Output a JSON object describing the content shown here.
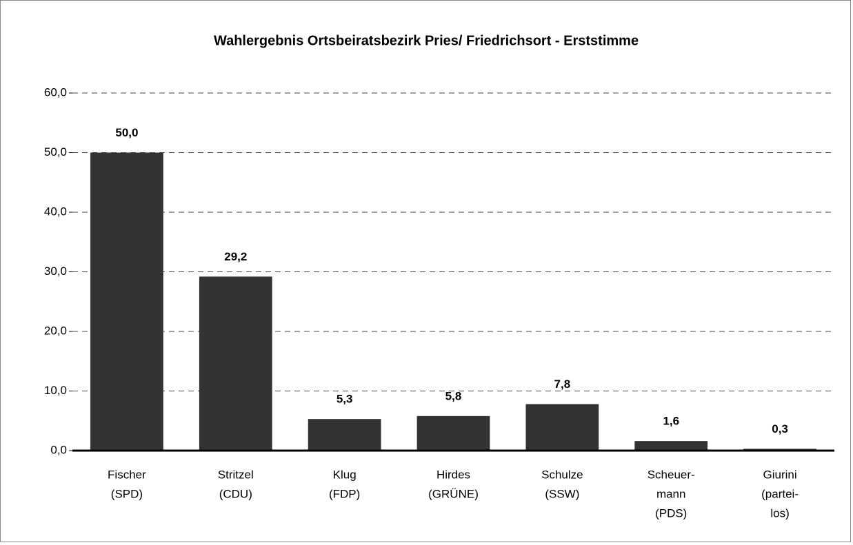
{
  "chart_data": {
    "type": "bar",
    "title": "Wahlergebnis Ortsbeiratsbezirk Pries/ Friedrichsort - Erststimme",
    "categories": [
      [
        "Fischer",
        "(SPD)"
      ],
      [
        "Stritzel",
        "(CDU)"
      ],
      [
        "Klug",
        "(FDP)"
      ],
      [
        "Hirdes",
        "(GRÜNE)"
      ],
      [
        "Schulze",
        "(SSW)"
      ],
      [
        "Scheuer-",
        "mann",
        "(PDS)"
      ],
      [
        "Giurini",
        "(partei-",
        "los)"
      ]
    ],
    "values": [
      50.0,
      29.2,
      5.3,
      5.8,
      7.8,
      1.6,
      0.3
    ],
    "value_labels": [
      "50,0",
      "29,2",
      "5,3",
      "5,8",
      "7,8",
      "1,6",
      "0,3"
    ],
    "color": "#333333",
    "ylim": [
      0,
      60
    ],
    "yticks": [
      {
        "value": 0,
        "label": "0,0"
      },
      {
        "value": 10,
        "label": "10,0"
      },
      {
        "value": 20,
        "label": "20,0"
      },
      {
        "value": 30,
        "label": "30,0"
      },
      {
        "value": 40,
        "label": "40,0"
      },
      {
        "value": 50,
        "label": "50,0"
      },
      {
        "value": 60,
        "label": "60,0"
      }
    ],
    "grid": true
  }
}
